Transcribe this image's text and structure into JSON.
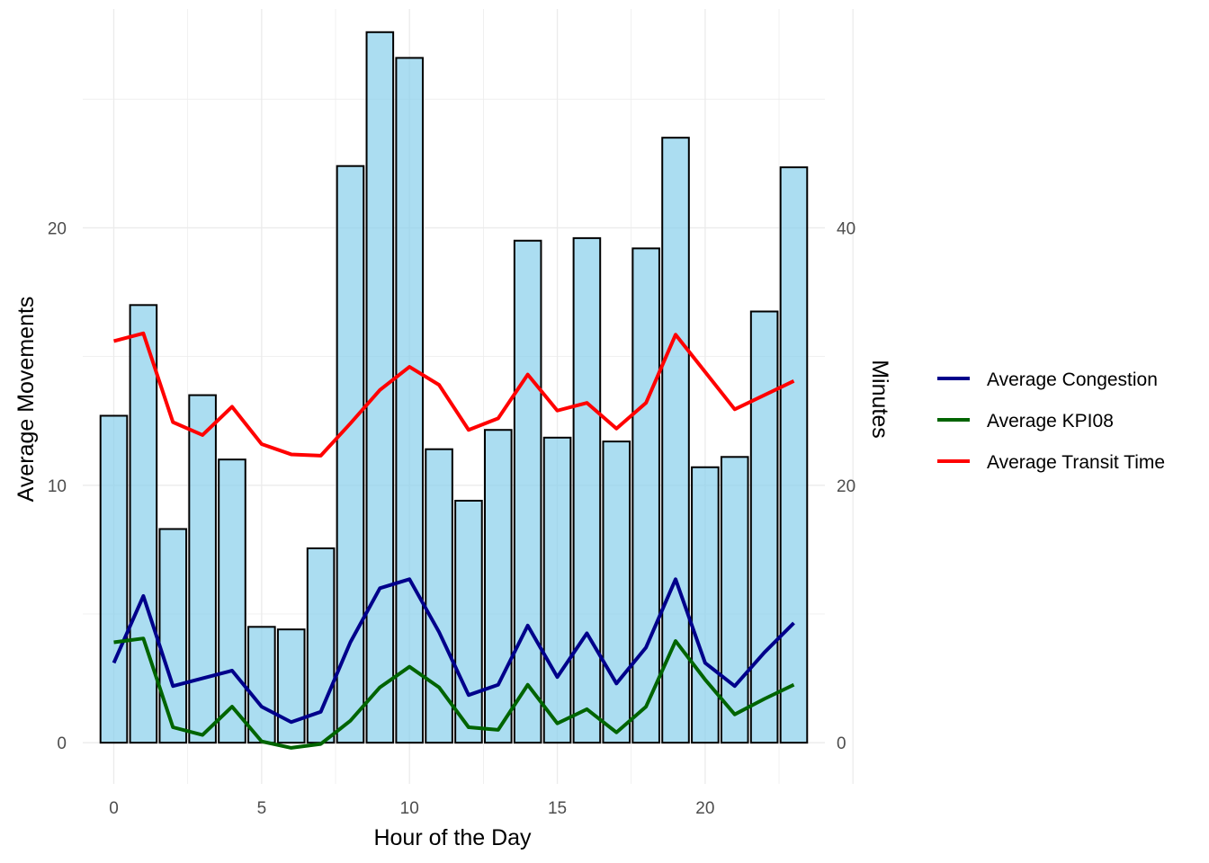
{
  "chart_data": {
    "type": "bar",
    "xlabel": "Hour of the Day",
    "ylabel": "Average Movements",
    "y2label": "Minutes",
    "x": [
      0,
      1,
      2,
      3,
      4,
      5,
      6,
      7,
      8,
      9,
      10,
      11,
      12,
      13,
      14,
      15,
      16,
      17,
      18,
      19,
      20,
      21,
      22,
      23
    ],
    "xlim": [
      -1.05,
      24.05
    ],
    "xticks": [
      "0",
      "5",
      "10",
      "15",
      "20"
    ],
    "xtick_values": [
      0,
      5,
      10,
      15,
      20
    ],
    "ylim": [
      -1.6,
      28.5
    ],
    "yticks": [
      "0",
      "10",
      "20"
    ],
    "ytick_values": [
      0,
      10,
      20
    ],
    "y2lim": [
      -3.2,
      57.0
    ],
    "y2ticks": [
      "0",
      "20",
      "40"
    ],
    "y2tick_values": [
      0,
      20,
      40
    ],
    "bars": {
      "fill": "#87ceeb",
      "edge": "#000000",
      "values": [
        12.7,
        17.0,
        8.3,
        13.5,
        11.0,
        4.5,
        4.4,
        7.55,
        22.4,
        27.6,
        26.6,
        11.4,
        9.4,
        12.15,
        19.5,
        11.85,
        19.6,
        11.7,
        19.2,
        23.5,
        10.7,
        11.1,
        16.75,
        22.35
      ]
    },
    "series": [
      {
        "name": "Average Congestion",
        "color": "#00008b",
        "values": [
          3.1,
          5.7,
          2.2,
          2.5,
          2.8,
          1.4,
          0.8,
          1.2,
          3.9,
          6.0,
          6.35,
          4.3,
          1.85,
          2.25,
          4.55,
          2.55,
          4.25,
          2.3,
          3.7,
          6.35,
          3.1,
          2.2,
          3.5,
          4.65
        ]
      },
      {
        "name": "Average KPI08",
        "color": "#006400",
        "values": [
          3.9,
          4.05,
          0.6,
          0.3,
          1.4,
          0.05,
          -0.2,
          -0.05,
          0.85,
          2.15,
          2.95,
          2.15,
          0.6,
          0.5,
          2.25,
          0.75,
          1.3,
          0.4,
          1.4,
          3.95,
          2.45,
          1.1,
          1.7,
          2.25
        ]
      },
      {
        "name": "Average Transit Time",
        "color": "#ff0000",
        "values": [
          15.6,
          15.9,
          12.45,
          11.95,
          13.05,
          11.6,
          11.2,
          11.15,
          12.4,
          13.7,
          14.6,
          13.9,
          12.15,
          12.6,
          14.3,
          12.9,
          13.2,
          12.2,
          13.2,
          15.85,
          14.4,
          12.95,
          13.5,
          14.05
        ]
      }
    ],
    "grid": true,
    "legend_position": "right"
  }
}
